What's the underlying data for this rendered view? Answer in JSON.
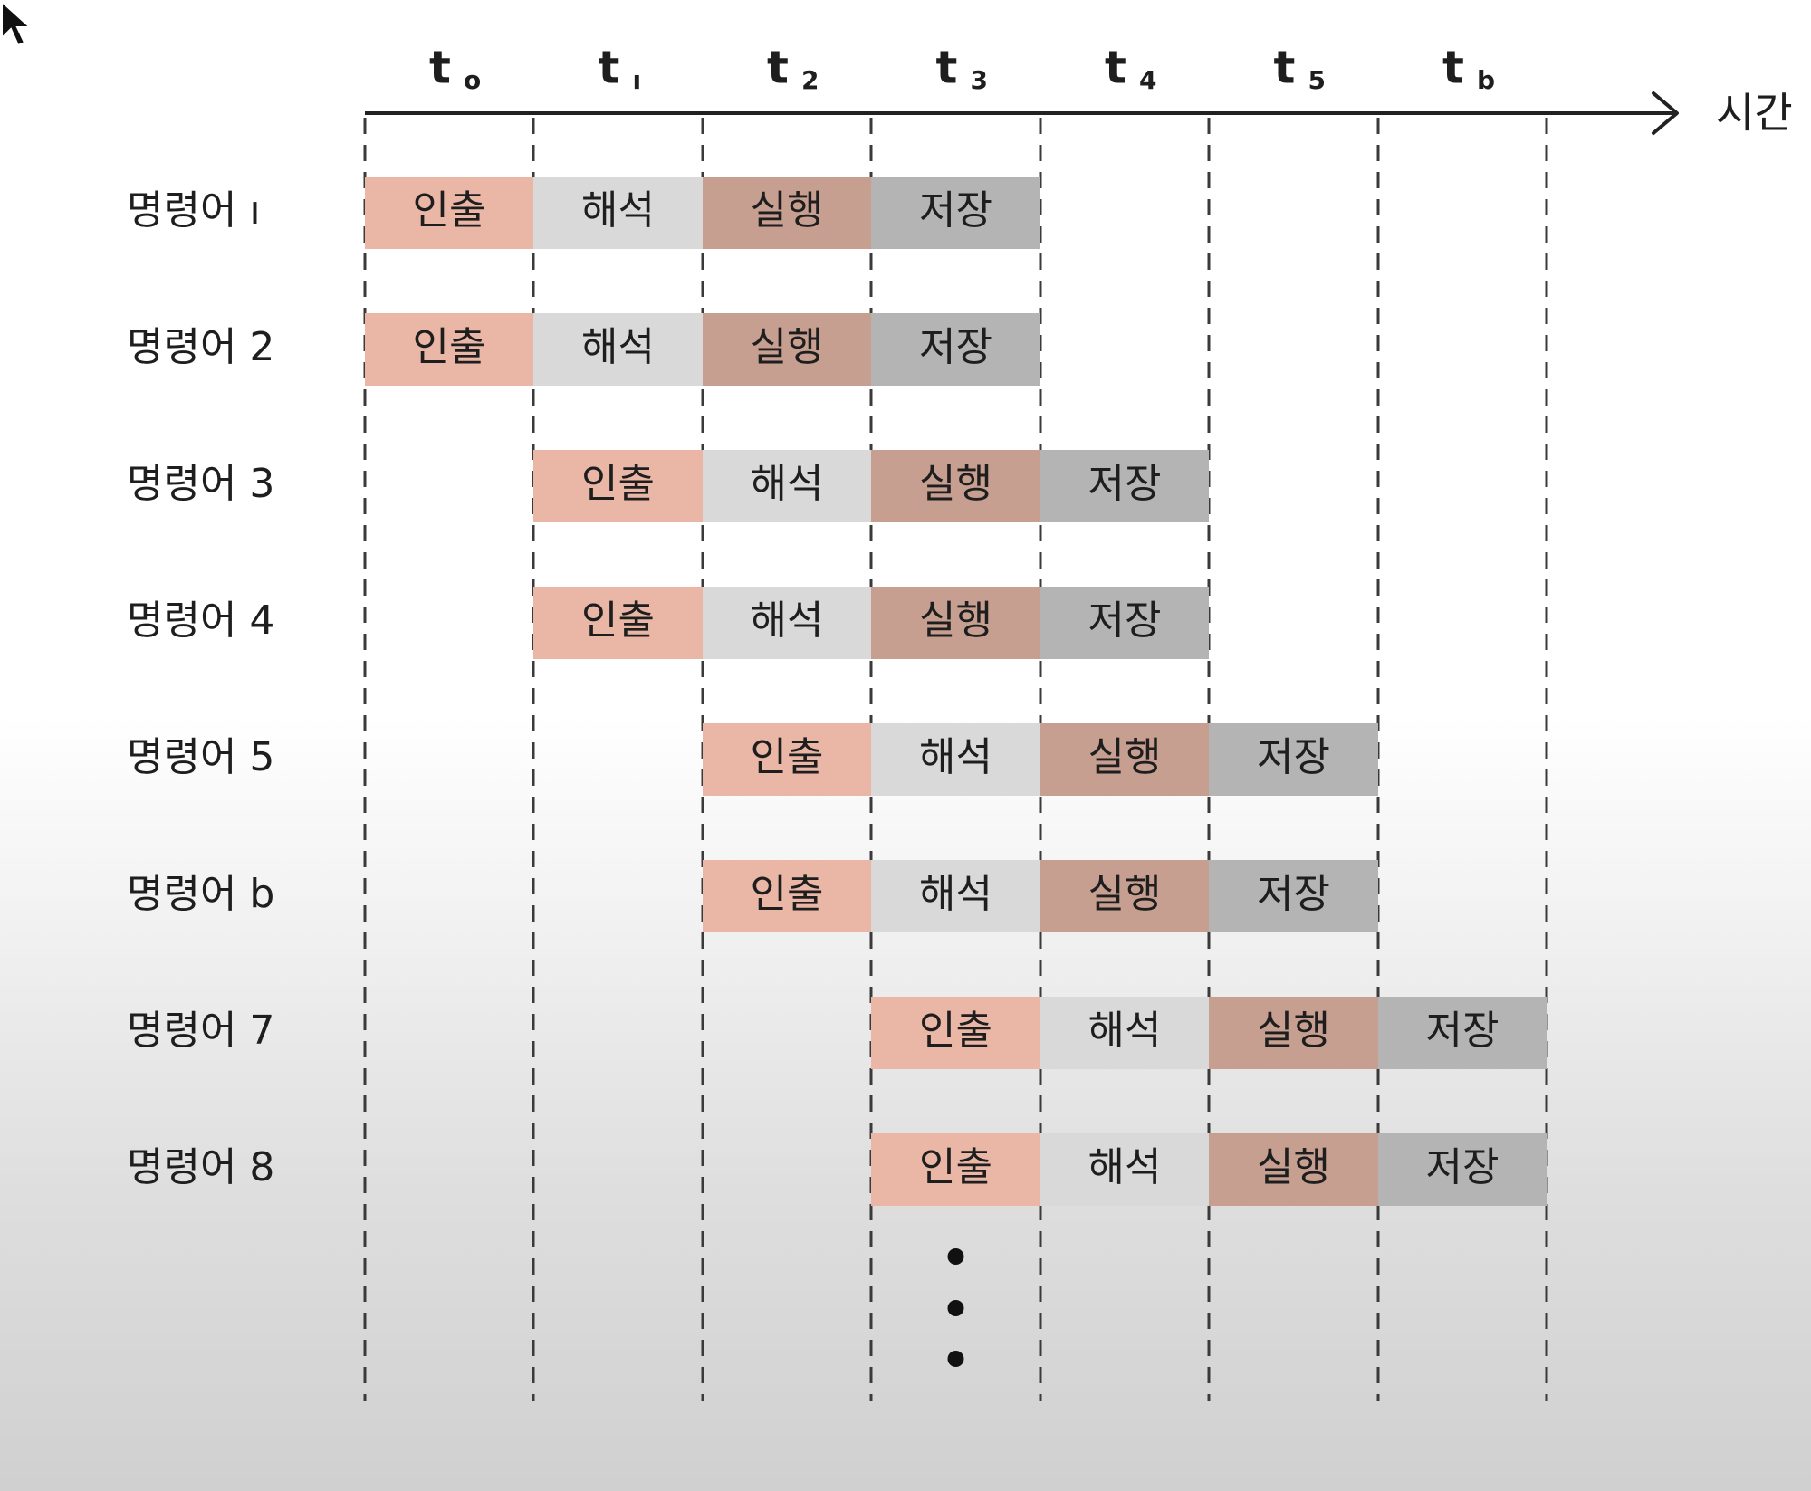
{
  "axis": {
    "label": "시간"
  },
  "time_ticks": [
    {
      "base": "t",
      "sub": "o"
    },
    {
      "base": "t",
      "sub": "ı"
    },
    {
      "base": "t",
      "sub": "2"
    },
    {
      "base": "t",
      "sub": "3"
    },
    {
      "base": "t",
      "sub": "4"
    },
    {
      "base": "t",
      "sub": "5"
    },
    {
      "base": "t",
      "sub": "b"
    }
  ],
  "stages": [
    {
      "key": "fetch",
      "label": "인출",
      "color": "#eab7a7"
    },
    {
      "key": "decode",
      "label": "해석",
      "color": "#d9d9d9"
    },
    {
      "key": "execute",
      "label": "실행",
      "color": "#c79f91"
    },
    {
      "key": "store",
      "label": "저장",
      "color": "#b4b4b4"
    }
  ],
  "instructions": [
    {
      "label": "명령어 ı",
      "start": 0
    },
    {
      "label": "명령어 2",
      "start": 0
    },
    {
      "label": "명령어 3",
      "start": 1
    },
    {
      "label": "명령어 4",
      "start": 1
    },
    {
      "label": "명령어 5",
      "start": 2
    },
    {
      "label": "명령어 b",
      "start": 2
    },
    {
      "label": "명령어 7",
      "start": 3
    },
    {
      "label": "명령어 8",
      "start": 3
    }
  ],
  "continuation_marker": "ellipsis-dots"
}
